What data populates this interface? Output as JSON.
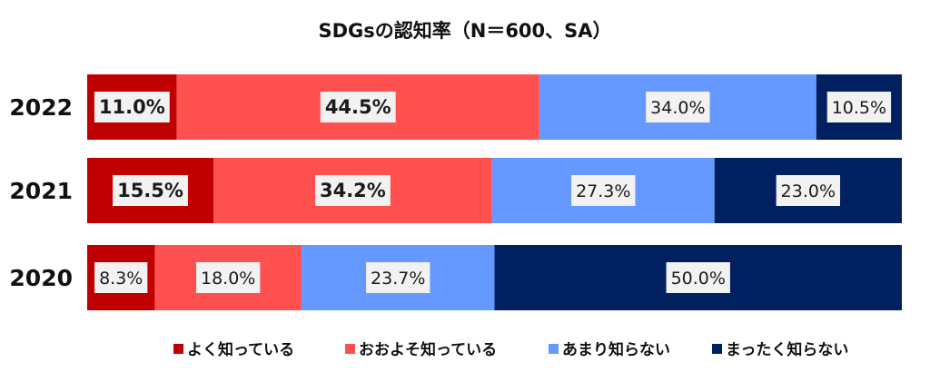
{
  "chart_data": {
    "type": "bar",
    "orientation": "horizontal",
    "stacked": "100%",
    "title": "SDGsの認知率（N＝600、SA）",
    "categories": [
      "2022",
      "2021",
      "2020"
    ],
    "series": [
      {
        "name": "よく知っている",
        "color": "#c00000",
        "values": [
          11.0,
          15.5,
          8.3
        ],
        "labels": [
          "11.0%",
          "15.5%",
          "8.3%"
        ]
      },
      {
        "name": "おおよそ知っている",
        "color": "#ff5050",
        "values": [
          44.5,
          34.2,
          18.0
        ],
        "labels": [
          "44.5%",
          "34.2%",
          "18.0%"
        ]
      },
      {
        "name": "あまり知らない",
        "color": "#6699ff",
        "values": [
          34.0,
          27.3,
          23.7
        ],
        "labels": [
          "34.0%",
          "27.3%",
          "23.7%"
        ]
      },
      {
        "name": "まったく知らない",
        "color": "#002060",
        "values": [
          10.5,
          23.0,
          50.0
        ],
        "labels": [
          "10.5%",
          "23.0%",
          "50.0%"
        ]
      }
    ],
    "bold_labels_row": "2022,2021 first two series",
    "legend_position": "bottom",
    "grid": false
  }
}
